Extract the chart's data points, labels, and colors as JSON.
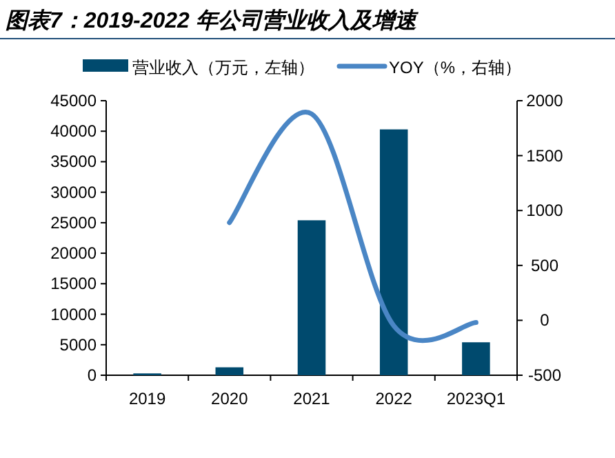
{
  "chart_data": {
    "type": "bar",
    "title": "图表7：2019-2022 年公司营业收入及增速",
    "categories": [
      "2019",
      "2020",
      "2021",
      "2022",
      "2023Q1"
    ],
    "series": [
      {
        "name": "营业收入（万元，左轴）",
        "color": "#004a6e",
        "values": [
          300,
          1300,
          25400,
          40300,
          5400
        ]
      },
      {
        "name": "YOY（%，右轴）",
        "type": "line",
        "axis": "y2",
        "color": "#4a86c5",
        "values": [
          null,
          890,
          1880,
          -50,
          -20
        ]
      }
    ],
    "ylim": [
      0,
      45000
    ],
    "yticks": [
      0,
      5000,
      10000,
      15000,
      20000,
      25000,
      30000,
      35000,
      40000,
      45000
    ],
    "y2lim": [
      -500,
      2000
    ],
    "y2ticks": [
      -500,
      0,
      500,
      1000,
      1500,
      2000
    ],
    "legend": "top",
    "grid": false,
    "marker": "none"
  }
}
